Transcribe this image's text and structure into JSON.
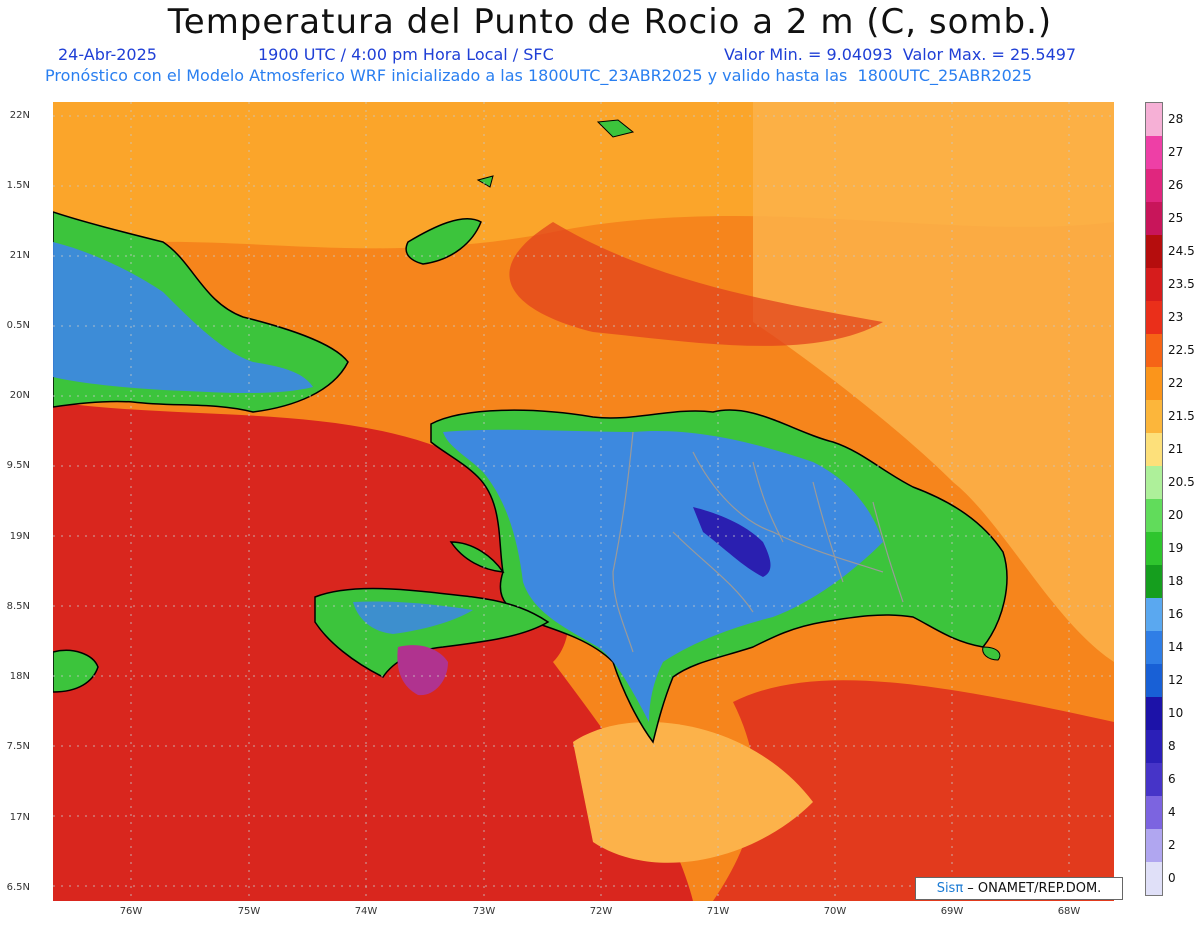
{
  "header": {
    "title": "Temperatura del Punto de Rocio a 2 m (C, somb.)",
    "date": "24-Abr-2025",
    "time": "1900 UTC / 4:00 pm Hora Local / SFC",
    "range": "Valor Min. = 9.04093  Valor Max. = 25.5497",
    "info": "Pronóstico con el Modelo Atmosferico WRF inicializado a las 1800UTC_23ABR2025 y valido hasta las  1800UTC_25ABR2025"
  },
  "axes": {
    "lat_labels": [
      "22N",
      "1.5N",
      "21N",
      "0.5N",
      "20N",
      "9.5N",
      "19N",
      "8.5N",
      "18N",
      "7.5N",
      "17N",
      "6.5N"
    ],
    "lon_labels": [
      "76W",
      "75W",
      "74W",
      "73W",
      "72W",
      "71W",
      "70W",
      "69W",
      "68W"
    ]
  },
  "colorbar": {
    "labels": [
      "28",
      "27",
      "26",
      "25",
      "24.5",
      "23.5",
      "23",
      "22.5",
      "22",
      "21.5",
      "21",
      "20.5",
      "20",
      "19",
      "18",
      "16",
      "14",
      "12",
      "10",
      "8",
      "6",
      "4",
      "2",
      "0"
    ],
    "colors": [
      "#f6b0d6",
      "#ee3fa6",
      "#e0267e",
      "#c8155a",
      "#b50d0d",
      "#d61c1c",
      "#ea2f1a",
      "#f66416",
      "#fb951b",
      "#fcb63b",
      "#fde07a",
      "#aef09a",
      "#61dc5b",
      "#2fc52e",
      "#159e1e",
      "#5aa8f0",
      "#2f7ee6",
      "#1860d6",
      "#1c12a8",
      "#2b1fb8",
      "#4634c8",
      "#7c64e0",
      "#b0a6f0",
      "#e0e0f8"
    ]
  },
  "credit": {
    "sis": "Sis",
    "pi": "π",
    "rest": " – ONAMET/REP.DOM."
  },
  "colors": {
    "sea_hot": "#d9261e",
    "sea_warm": "#f67a17",
    "sea_mild": "#fba52a",
    "land_green": "#3cc43c",
    "land_blue": "#3d86e8",
    "land_dark": "#2215a8",
    "hot_spot": "#b0338f"
  }
}
